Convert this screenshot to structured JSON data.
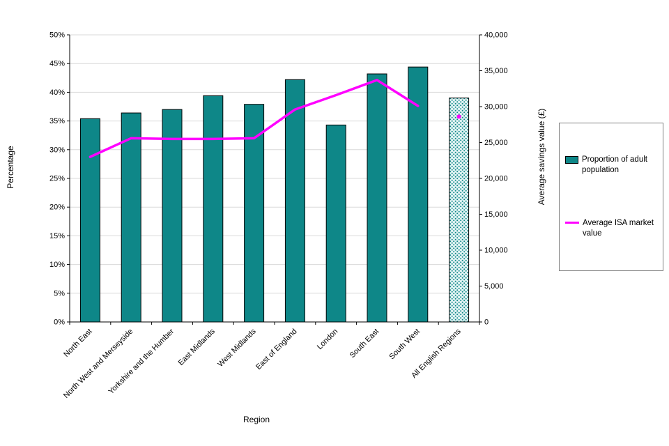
{
  "chart_data": {
    "type": "combo-bar-line",
    "title": "",
    "xlabel": "Region",
    "ylabel_left": "Percentage",
    "ylabel_right": "Average savings value (£)",
    "categories": [
      "North East",
      "North West and Merseyside",
      "Yorkshire and the Humber",
      "East Midlands",
      "West Midlands",
      "East of England",
      "London",
      "South East",
      "South West",
      "All English Regions"
    ],
    "series": [
      {
        "name": "Proportion of adult population",
        "type": "bar",
        "axis": "left",
        "color": "#0e8788",
        "pattern_last_bar": true,
        "values": [
          35.4,
          36.4,
          37.0,
          39.4,
          37.9,
          42.2,
          34.3,
          43.2,
          44.4,
          39.0
        ]
      },
      {
        "name": "Average ISA market value",
        "type": "line",
        "axis": "right",
        "color": "#ff00ff",
        "last_point_detached": true,
        "values": [
          23000,
          25600,
          25500,
          25500,
          25600,
          29600,
          31600,
          33700,
          30100,
          28600
        ]
      }
    ],
    "left_axis": {
      "min": 0,
      "max": 50,
      "step": 5,
      "unit": "%"
    },
    "right_axis": {
      "min": 0,
      "max": 40000,
      "step": 5000
    },
    "grid": true,
    "legend_position": "right"
  }
}
